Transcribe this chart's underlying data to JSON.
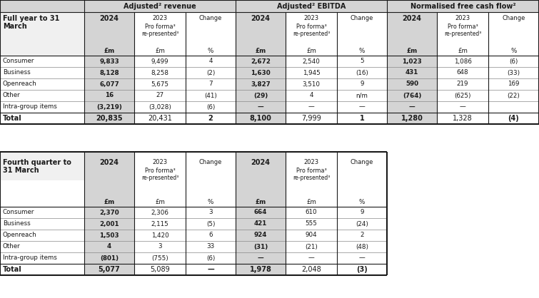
{
  "bg_color": "#ffffff",
  "gray": "#d4d4d4",
  "white": "#ffffff",
  "group_headers_s1": [
    "Adjusted² revenue",
    "Adjusted² EBITDA",
    "Normalised free cash flow²"
  ],
  "group_headers_s2": [
    "Adjusted² revenue",
    "Adjusted² EBITDA"
  ],
  "rows_section1": [
    [
      "Consumer",
      "9,833",
      "9,499",
      "4",
      "2,672",
      "2,540",
      "5",
      "1,023",
      "1,086",
      "(6)"
    ],
    [
      "Business",
      "8,128",
      "8,258",
      "(2)",
      "1,630",
      "1,945",
      "(16)",
      "431",
      "648",
      "(33)"
    ],
    [
      "Openreach",
      "6,077",
      "5,675",
      "7",
      "3,827",
      "3,510",
      "9",
      "590",
      "219",
      "169"
    ],
    [
      "Other",
      "16",
      "27",
      "(41)",
      "(29)",
      "4",
      "n/m",
      "(764)",
      "(625)",
      "(22)"
    ],
    [
      "Intra-group items",
      "(3,219)",
      "(3,028)",
      "(6)",
      "—",
      "—",
      "—",
      "—",
      "—",
      ""
    ]
  ],
  "total_s1": [
    "Total",
    "20,835",
    "20,431",
    "2",
    "8,100",
    "7,999",
    "1",
    "1,280",
    "1,328",
    "(4)"
  ],
  "rows_section2": [
    [
      "Consumer",
      "2,370",
      "2,306",
      "3",
      "664",
      "610",
      "9"
    ],
    [
      "Business",
      "2,001",
      "2,115",
      "(5)",
      "421",
      "555",
      "(24)"
    ],
    [
      "Openreach",
      "1,503",
      "1,420",
      "6",
      "924",
      "904",
      "2"
    ],
    [
      "Other",
      "4",
      "3",
      "33",
      "(31)",
      "(21)",
      "(48)"
    ],
    [
      "Intra-group items",
      "(801)",
      "(755)",
      "(6)",
      "—",
      "—",
      "—"
    ]
  ],
  "total_s2": [
    "Total",
    "5,077",
    "5,089",
    "—",
    "1,978",
    "2,048",
    "(3)"
  ]
}
